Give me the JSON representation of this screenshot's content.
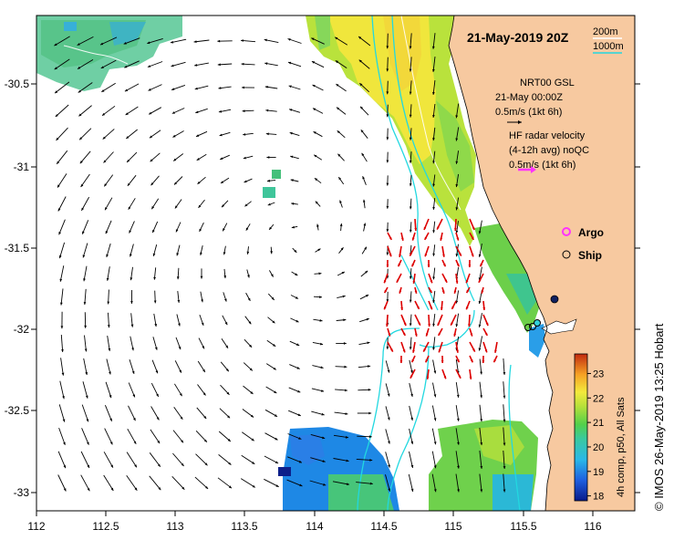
{
  "map": {
    "title": "21-May-2019 20Z",
    "credit": "© IMOS 26-May-2019 13:25 Hobart",
    "x_ticks": [
      "112",
      "112.5",
      "113",
      "113.5",
      "114",
      "114.5",
      "115",
      "115.5",
      "116"
    ],
    "y_ticks": [
      "-30.5",
      "-31",
      "-31.5",
      "-32",
      "-32.5",
      "-33"
    ],
    "lon_range": [
      112,
      116.3
    ],
    "lat_range": [
      -33.1,
      -30.05
    ]
  },
  "legend": {
    "depth_200": "200m",
    "depth_1000": "1000m",
    "model_name": "NRT00 GSL",
    "model_time": "21-May 00:00Z",
    "model_scale": "0.5m/s (1kt 6h)",
    "radar_title": "HF radar velocity",
    "radar_subtitle": "(4-12h avg) noQC",
    "radar_scale": "0.5m/s (1kt 6h)",
    "argo_label": "Argo",
    "ship_label": "Ship"
  },
  "colorbar": {
    "label": "4h comp, p50, All Sats",
    "ticks": [
      "23",
      "22",
      "21",
      "20",
      "19",
      "18"
    ],
    "range": [
      17.8,
      23.8
    ]
  },
  "colors": {
    "land": "#f7c9a0",
    "model_vector": "#000000",
    "radar_vector": "#dd0000",
    "isobath": "#22d8e0",
    "argo": "#ff33ff"
  }
}
